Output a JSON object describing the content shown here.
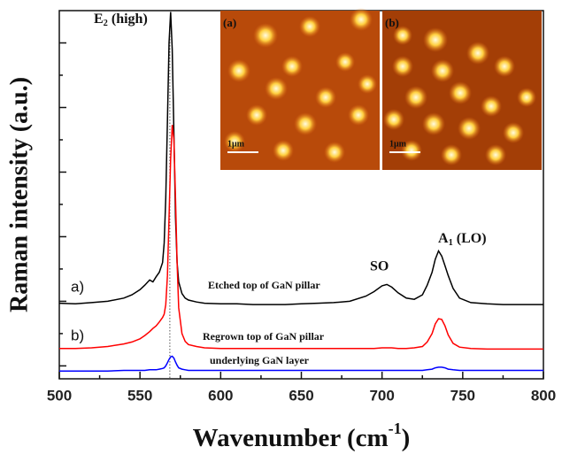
{
  "chart_data": {
    "type": "line",
    "x_label": {
      "base": "Wavenumber (cm",
      "sup": "-1",
      "tail": ")"
    },
    "y_label": "Raman intensity (a.u.)",
    "xlim": [
      500,
      800
    ],
    "xticks": [
      500,
      550,
      600,
      650,
      700,
      750,
      800
    ],
    "xminorticks": [
      525,
      575,
      625,
      675,
      725,
      775
    ],
    "ylim": [
      -0.2,
      5.5
    ],
    "yticks": [
      0,
      1,
      2,
      3,
      4,
      5
    ],
    "yminorticks": [
      0.5,
      1.5,
      2.5,
      3.5,
      4.5
    ],
    "reference_line_x": 568.5,
    "x": [
      500,
      510,
      520,
      530,
      540,
      545,
      550,
      553,
      556,
      558,
      560,
      562,
      564,
      565,
      566,
      567,
      568,
      569,
      570,
      571,
      572,
      573,
      574,
      576,
      578,
      580,
      585,
      590,
      600,
      610,
      620,
      630,
      640,
      650,
      660,
      670,
      680,
      690,
      695,
      700,
      703,
      706,
      710,
      715,
      720,
      725,
      728,
      731,
      733,
      735,
      737,
      739,
      741,
      744,
      748,
      755,
      765,
      775,
      790,
      800
    ],
    "series": [
      {
        "name": "Etched top of GaN pillar",
        "tag": "a)",
        "color": "#000000",
        "values": [
          0.97,
          0.96,
          0.98,
          1.0,
          1.05,
          1.1,
          1.18,
          1.25,
          1.33,
          1.3,
          1.38,
          1.45,
          1.6,
          1.9,
          2.6,
          3.8,
          5.0,
          5.48,
          4.9,
          3.6,
          2.3,
          1.6,
          1.3,
          1.12,
          1.05,
          1.02,
          0.99,
          0.97,
          0.96,
          0.96,
          0.95,
          0.95,
          0.95,
          0.96,
          0.97,
          0.98,
          1.0,
          1.08,
          1.15,
          1.24,
          1.26,
          1.22,
          1.13,
          1.05,
          1.03,
          1.1,
          1.25,
          1.45,
          1.65,
          1.78,
          1.7,
          1.55,
          1.4,
          1.2,
          1.05,
          0.98,
          0.96,
          0.95,
          0.95,
          0.95
        ]
      },
      {
        "name": "Regrown top of GaN pillar",
        "tag": "b)",
        "color": "#ff0000",
        "values": [
          0.27,
          0.27,
          0.28,
          0.3,
          0.34,
          0.37,
          0.42,
          0.47,
          0.53,
          0.58,
          0.62,
          0.68,
          0.75,
          0.8,
          0.95,
          1.4,
          2.3,
          3.2,
          3.73,
          3.5,
          2.6,
          1.6,
          0.9,
          0.5,
          0.38,
          0.33,
          0.3,
          0.28,
          0.27,
          0.27,
          0.27,
          0.27,
          0.27,
          0.27,
          0.27,
          0.27,
          0.27,
          0.27,
          0.27,
          0.28,
          0.28,
          0.28,
          0.27,
          0.27,
          0.28,
          0.3,
          0.37,
          0.5,
          0.65,
          0.73,
          0.72,
          0.62,
          0.48,
          0.35,
          0.29,
          0.27,
          0.26,
          0.26,
          0.26,
          0.26
        ]
      },
      {
        "name": "underlying GaN layer",
        "color": "#0000ff",
        "values": [
          -0.08,
          -0.08,
          -0.08,
          -0.08,
          -0.07,
          -0.07,
          -0.07,
          -0.07,
          -0.06,
          -0.06,
          -0.06,
          -0.05,
          -0.04,
          -0.03,
          0,
          0.05,
          0.1,
          0.14,
          0.15,
          0.12,
          0.06,
          0.01,
          -0.03,
          -0.05,
          -0.06,
          -0.07,
          -0.07,
          -0.07,
          -0.07,
          -0.07,
          -0.07,
          -0.07,
          -0.07,
          -0.07,
          -0.07,
          -0.07,
          -0.07,
          -0.07,
          -0.07,
          -0.07,
          -0.07,
          -0.07,
          -0.07,
          -0.07,
          -0.07,
          -0.07,
          -0.06,
          -0.05,
          -0.03,
          -0.02,
          -0.02,
          -0.03,
          -0.05,
          -0.06,
          -0.07,
          -0.07,
          -0.07,
          -0.07,
          -0.07,
          -0.07
        ]
      }
    ],
    "annotations": {
      "e2": {
        "base": "E",
        "sub": "2",
        "tail": " (high)"
      },
      "so": "SO",
      "a1": {
        "base": "A",
        "sub": "1",
        "tail": " (LO)"
      }
    },
    "insets": [
      {
        "label": "(a)",
        "scale": "1μm"
      },
      {
        "label": "(b)",
        "scale": "1μm"
      }
    ]
  }
}
